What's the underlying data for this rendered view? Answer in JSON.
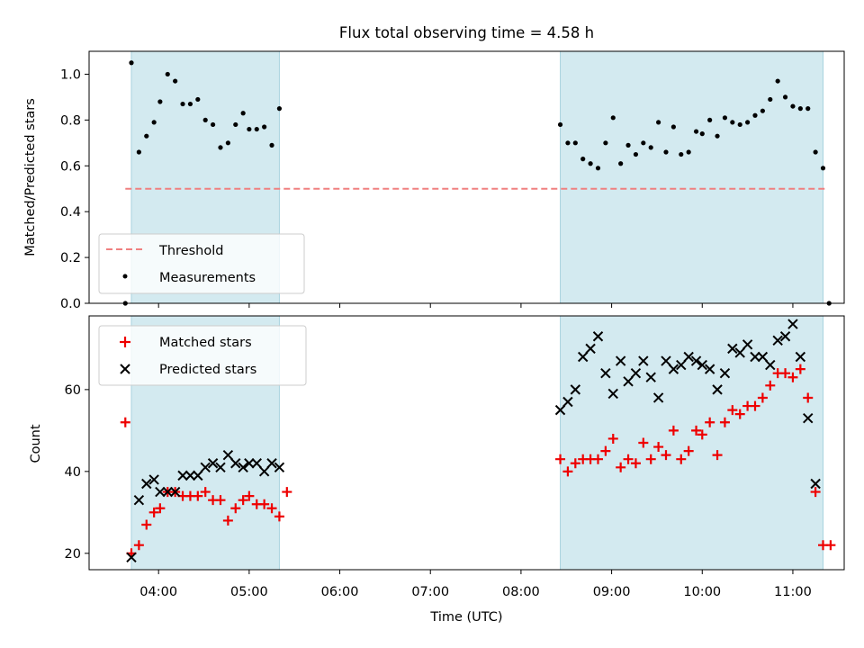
{
  "title": "Flux total observing time = 4.58 h",
  "colors": {
    "shade": "#d3eaf0",
    "threshold": "#f08080",
    "measurement": "#000000",
    "matched": "#ee0000",
    "predicted": "#000000"
  },
  "chart_data": [
    {
      "type": "scatter",
      "ylabel": "Matched/Predicted stars",
      "ylim": [
        0,
        1.1
      ],
      "yticks": [
        "0.0",
        "0.2",
        "0.4",
        "0.6",
        "0.8",
        "1.0"
      ],
      "legend_position": "lower-left",
      "observing_windows": [
        [
          "03:42",
          "05:20"
        ],
        [
          "08:26",
          "11:20"
        ]
      ],
      "threshold": {
        "name": "Threshold",
        "value": 0.5,
        "x_range": [
          "03:38",
          "11:22"
        ]
      },
      "measurements": {
        "name": "Measurements",
        "points": [
          [
            "03:38",
            0.0
          ],
          [
            "03:42",
            1.05
          ],
          [
            "03:47",
            0.66
          ],
          [
            "03:52",
            0.73
          ],
          [
            "03:57",
            0.79
          ],
          [
            "04:01",
            0.88
          ],
          [
            "04:06",
            1.0
          ],
          [
            "04:11",
            0.97
          ],
          [
            "04:16",
            0.87
          ],
          [
            "04:21",
            0.87
          ],
          [
            "04:26",
            0.89
          ],
          [
            "04:31",
            0.8
          ],
          [
            "04:36",
            0.78
          ],
          [
            "04:41",
            0.68
          ],
          [
            "04:46",
            0.7
          ],
          [
            "04:51",
            0.78
          ],
          [
            "04:56",
            0.83
          ],
          [
            "05:00",
            0.76
          ],
          [
            "05:05",
            0.76
          ],
          [
            "05:10",
            0.77
          ],
          [
            "05:15",
            0.69
          ],
          [
            "05:20",
            0.85
          ],
          [
            "08:26",
            0.78
          ],
          [
            "08:31",
            0.7
          ],
          [
            "08:36",
            0.7
          ],
          [
            "08:41",
            0.63
          ],
          [
            "08:46",
            0.61
          ],
          [
            "08:51",
            0.59
          ],
          [
            "08:56",
            0.7
          ],
          [
            "09:01",
            0.81
          ],
          [
            "09:06",
            0.61
          ],
          [
            "09:11",
            0.69
          ],
          [
            "09:16",
            0.65
          ],
          [
            "09:21",
            0.7
          ],
          [
            "09:26",
            0.68
          ],
          [
            "09:31",
            0.79
          ],
          [
            "09:36",
            0.66
          ],
          [
            "09:41",
            0.77
          ],
          [
            "09:46",
            0.65
          ],
          [
            "09:51",
            0.66
          ],
          [
            "09:56",
            0.75
          ],
          [
            "10:00",
            0.74
          ],
          [
            "10:05",
            0.8
          ],
          [
            "10:10",
            0.73
          ],
          [
            "10:15",
            0.81
          ],
          [
            "10:20",
            0.79
          ],
          [
            "10:25",
            0.78
          ],
          [
            "10:30",
            0.79
          ],
          [
            "10:35",
            0.82
          ],
          [
            "10:40",
            0.84
          ],
          [
            "10:45",
            0.89
          ],
          [
            "10:50",
            0.97
          ],
          [
            "10:55",
            0.9
          ],
          [
            "11:00",
            0.86
          ],
          [
            "11:05",
            0.85
          ],
          [
            "11:10",
            0.85
          ],
          [
            "11:15",
            0.66
          ],
          [
            "11:20",
            0.59
          ],
          [
            "11:24",
            0.0
          ]
        ]
      }
    },
    {
      "type": "scatter",
      "xlabel": "Time (UTC)",
      "ylabel": "Count",
      "ylim": [
        16,
        78
      ],
      "yticks": [
        "20",
        "40",
        "60"
      ],
      "xlim": [
        "03:14",
        "11:34"
      ],
      "xticks": [
        "04:00",
        "05:00",
        "06:00",
        "07:00",
        "08:00",
        "09:00",
        "10:00",
        "11:00"
      ],
      "legend_position": "upper-left",
      "series": [
        {
          "name": "Matched stars",
          "marker": "plus",
          "points": [
            [
              "03:38",
              52
            ],
            [
              "03:42",
              20
            ],
            [
              "03:47",
              22
            ],
            [
              "03:52",
              27
            ],
            [
              "03:57",
              30
            ],
            [
              "04:01",
              31
            ],
            [
              "04:06",
              35
            ],
            [
              "04:11",
              35
            ],
            [
              "04:16",
              34
            ],
            [
              "04:21",
              34
            ],
            [
              "04:26",
              34
            ],
            [
              "04:31",
              35
            ],
            [
              "04:36",
              33
            ],
            [
              "04:41",
              33
            ],
            [
              "04:46",
              28
            ],
            [
              "04:51",
              31
            ],
            [
              "04:56",
              33
            ],
            [
              "05:00",
              34
            ],
            [
              "05:05",
              32
            ],
            [
              "05:10",
              32
            ],
            [
              "05:15",
              31
            ],
            [
              "05:20",
              29
            ],
            [
              "05:25",
              35
            ],
            [
              "08:26",
              43
            ],
            [
              "08:31",
              40
            ],
            [
              "08:36",
              42
            ],
            [
              "08:41",
              43
            ],
            [
              "08:46",
              43
            ],
            [
              "08:51",
              43
            ],
            [
              "08:56",
              45
            ],
            [
              "09:01",
              48
            ],
            [
              "09:06",
              41
            ],
            [
              "09:11",
              43
            ],
            [
              "09:16",
              42
            ],
            [
              "09:21",
              47
            ],
            [
              "09:26",
              43
            ],
            [
              "09:31",
              46
            ],
            [
              "09:36",
              44
            ],
            [
              "09:41",
              50
            ],
            [
              "09:46",
              43
            ],
            [
              "09:51",
              45
            ],
            [
              "09:56",
              50
            ],
            [
              "10:00",
              49
            ],
            [
              "10:05",
              52
            ],
            [
              "10:10",
              44
            ],
            [
              "10:15",
              52
            ],
            [
              "10:20",
              55
            ],
            [
              "10:25",
              54
            ],
            [
              "10:30",
              56
            ],
            [
              "10:35",
              56
            ],
            [
              "10:40",
              58
            ],
            [
              "10:45",
              61
            ],
            [
              "10:50",
              64
            ],
            [
              "10:55",
              64
            ],
            [
              "11:00",
              63
            ],
            [
              "11:05",
              65
            ],
            [
              "11:10",
              58
            ],
            [
              "11:15",
              35
            ],
            [
              "11:20",
              22
            ],
            [
              "11:25",
              22
            ]
          ]
        },
        {
          "name": "Predicted stars",
          "marker": "x",
          "points": [
            [
              "03:42",
              19
            ],
            [
              "03:47",
              33
            ],
            [
              "03:52",
              37
            ],
            [
              "03:57",
              38
            ],
            [
              "04:01",
              35
            ],
            [
              "04:06",
              35
            ],
            [
              "04:11",
              35
            ],
            [
              "04:16",
              39
            ],
            [
              "04:21",
              39
            ],
            [
              "04:26",
              39
            ],
            [
              "04:31",
              41
            ],
            [
              "04:36",
              42
            ],
            [
              "04:41",
              41
            ],
            [
              "04:46",
              44
            ],
            [
              "04:51",
              42
            ],
            [
              "04:56",
              41
            ],
            [
              "05:00",
              42
            ],
            [
              "05:05",
              42
            ],
            [
              "05:10",
              40
            ],
            [
              "05:15",
              42
            ],
            [
              "05:20",
              41
            ],
            [
              "08:26",
              55
            ],
            [
              "08:31",
              57
            ],
            [
              "08:36",
              60
            ],
            [
              "08:41",
              68
            ],
            [
              "08:46",
              70
            ],
            [
              "08:51",
              73
            ],
            [
              "08:56",
              64
            ],
            [
              "09:01",
              59
            ],
            [
              "09:06",
              67
            ],
            [
              "09:11",
              62
            ],
            [
              "09:16",
              64
            ],
            [
              "09:21",
              67
            ],
            [
              "09:26",
              63
            ],
            [
              "09:31",
              58
            ],
            [
              "09:36",
              67
            ],
            [
              "09:41",
              65
            ],
            [
              "09:46",
              66
            ],
            [
              "09:51",
              68
            ],
            [
              "09:56",
              67
            ],
            [
              "10:00",
              66
            ],
            [
              "10:05",
              65
            ],
            [
              "10:10",
              60
            ],
            [
              "10:15",
              64
            ],
            [
              "10:20",
              70
            ],
            [
              "10:25",
              69
            ],
            [
              "10:30",
              71
            ],
            [
              "10:35",
              68
            ],
            [
              "10:40",
              68
            ],
            [
              "10:45",
              66
            ],
            [
              "10:50",
              72
            ],
            [
              "10:55",
              73
            ],
            [
              "11:00",
              76
            ],
            [
              "11:05",
              68
            ],
            [
              "11:10",
              53
            ],
            [
              "11:15",
              37
            ]
          ]
        }
      ]
    }
  ]
}
